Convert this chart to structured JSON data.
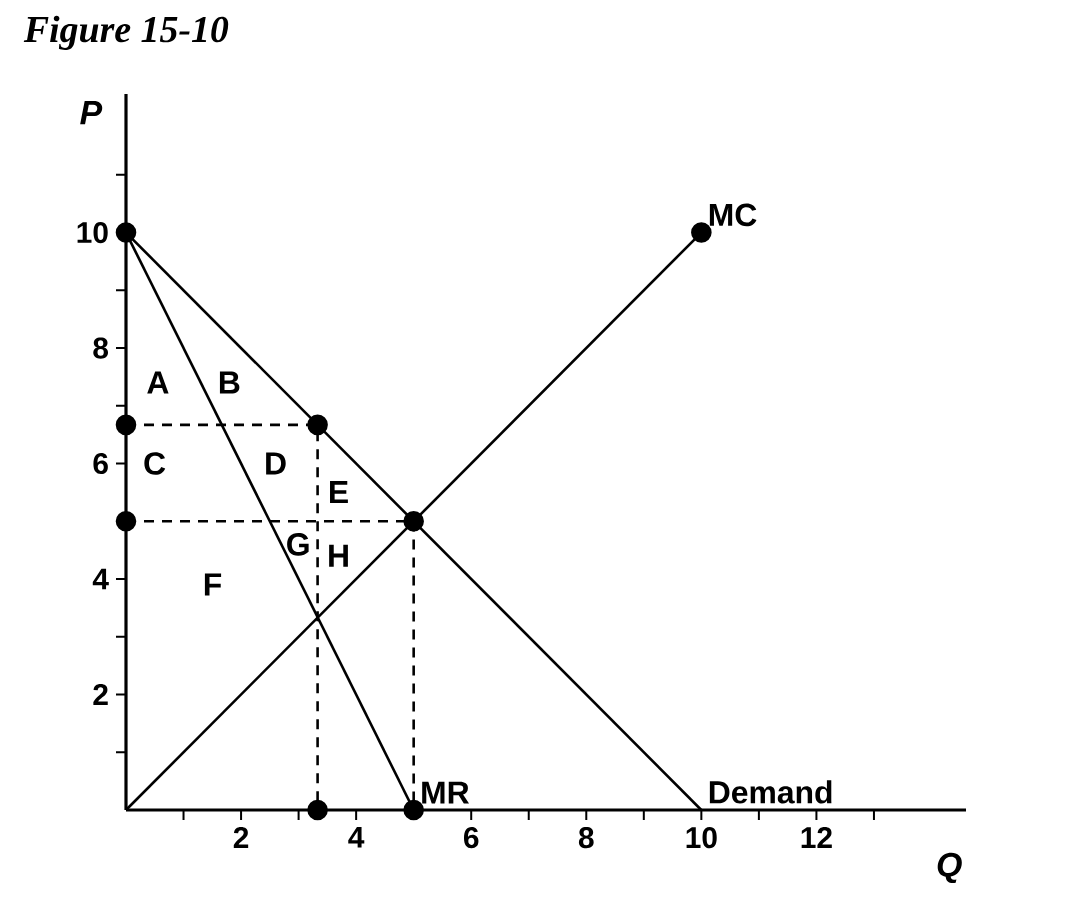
{
  "chart_data": {
    "type": "line",
    "title": "Figure 15-10",
    "xlabel": "Q",
    "ylabel": "P",
    "xlim": [
      0,
      14.6
    ],
    "ylim": [
      0,
      12.4
    ],
    "xticks": [
      {
        "value": 1,
        "label": null
      },
      2,
      {
        "value": 3,
        "label": null
      },
      4,
      {
        "value": 5,
        "label": null
      },
      6,
      {
        "value": 7,
        "label": null
      },
      8,
      {
        "value": 9,
        "label": null
      },
      10,
      {
        "value": 11,
        "label": null
      },
      12,
      {
        "value": 13,
        "label": null
      }
    ],
    "yticks": [
      {
        "value": 1,
        "label": null
      },
      2,
      {
        "value": 3,
        "label": null
      },
      4,
      {
        "value": 5,
        "label": null
      },
      6,
      {
        "value": 7,
        "label": null
      },
      8,
      {
        "value": 9,
        "label": null
      },
      10,
      {
        "value": 11,
        "label": null
      }
    ],
    "series": [
      {
        "name": "Demand",
        "color": "#000000",
        "x": [
          0,
          10
        ],
        "values": [
          10,
          0
        ]
      },
      {
        "name": "MR",
        "color": "#000000",
        "x": [
          0,
          5
        ],
        "values": [
          10,
          0
        ]
      },
      {
        "name": "MC",
        "color": "#000000",
        "x": [
          0,
          10
        ],
        "values": [
          0,
          10
        ]
      },
      {
        "color": "#000000",
        "line_style": "dashed",
        "x": [
          0,
          3.33,
          3.33
        ],
        "values": [
          6.67,
          6.67,
          0
        ]
      },
      {
        "color": "#000000",
        "line_style": "dashed",
        "x": [
          0,
          5,
          5
        ],
        "values": [
          5,
          5,
          0
        ]
      },
      {
        "type": "scatter",
        "marker": "circle",
        "color": "#000000",
        "x": [
          0,
          0,
          0,
          3.33,
          5,
          3.33,
          5,
          10
        ],
        "values": [
          10,
          6.67,
          5,
          6.67,
          5,
          0,
          0,
          10
        ]
      }
    ],
    "annotations": [
      "A",
      "B",
      "C",
      "D",
      "E",
      "G",
      "H",
      "F"
    ]
  }
}
